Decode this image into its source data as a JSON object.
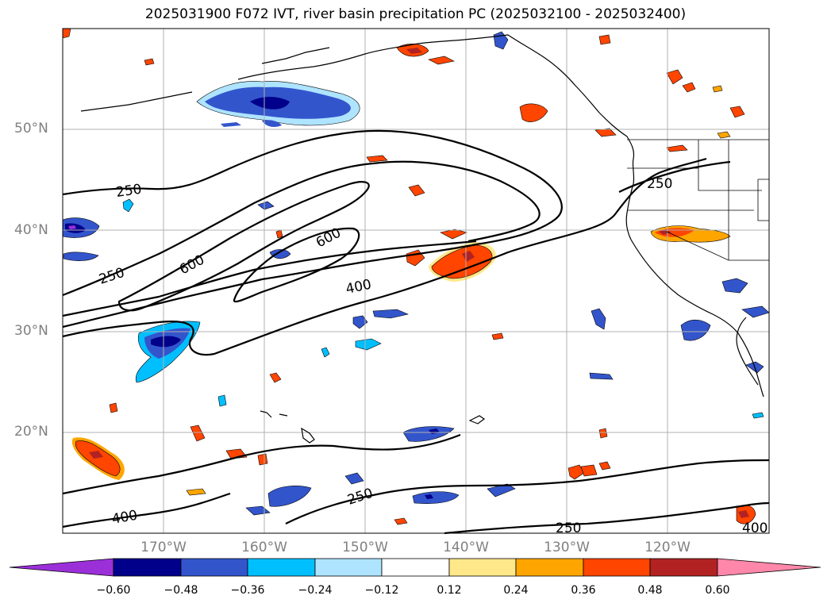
{
  "title": "2025031900 F072 IVT, river basin precipitation PC (2025032100 - 2025032400)",
  "latitude_labels": [
    "50°N",
    "40°N",
    "30°N",
    "20°N"
  ],
  "longitude_labels": [
    "170°W",
    "160°W",
    "150°W",
    "140°W",
    "130°W",
    "120°W"
  ],
  "contour_labels": [
    "250",
    "250",
    "250",
    "250",
    "250",
    "600",
    "600",
    "400",
    "400",
    "400"
  ],
  "colorbar": {
    "ticks": [
      "−0.60",
      "−0.48",
      "−0.36",
      "−0.24",
      "−0.12",
      "0.12",
      "0.24",
      "0.36",
      "0.48",
      "0.60"
    ],
    "colors": [
      "#9b30d9",
      "#00008b",
      "#3355cc",
      "#00bfff",
      "#aee4ff",
      "#ffffff",
      "#ffe88a",
      "#ffa500",
      "#ff4500",
      "#b22222",
      "#ff88aa"
    ]
  },
  "map": {
    "lat_range": [
      10,
      60
    ],
    "lon_range": [
      -180,
      -110
    ],
    "ivt_contour_levels": [
      250,
      400,
      600
    ],
    "land_fill": "#ffffff",
    "coastline_color": "#000000",
    "grid_color": "#b0b0b0"
  }
}
